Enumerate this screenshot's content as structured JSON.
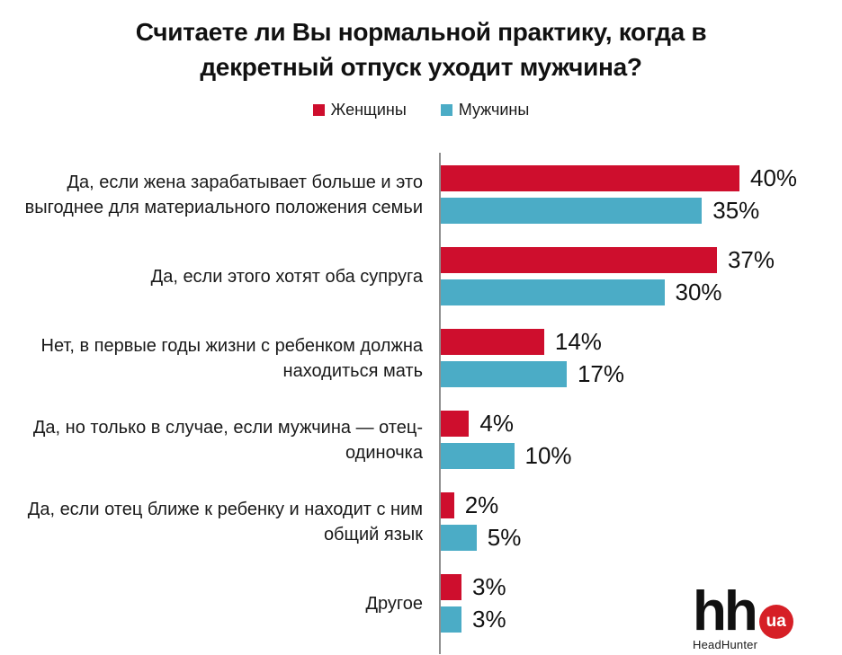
{
  "title": "Считаете ли Вы нормальной практику, когда в\nдекретный отпуск уходит мужчина?",
  "legend": [
    {
      "label": "Женщины",
      "color": "#ce0e2d"
    },
    {
      "label": "Мужчины",
      "color": "#4bacc6"
    }
  ],
  "chart_data": {
    "type": "bar",
    "orientation": "horizontal",
    "title": "Считаете ли Вы нормальной практику, когда в декретный отпуск уходит мужчина?",
    "categories": [
      "Да, если жена зарабатывает больше и это\nвыгоднее для материального положения семьи",
      "Да, если этого хотят оба супруга",
      "Нет, в первые годы жизни с ребенком должна\nнаходиться мать",
      "Да, но только в случае, если мужчина — отец-\nодиночка",
      "Да, если отец ближе к ребенку и находит с ним\nобщий язык",
      "Другое"
    ],
    "series": [
      {
        "name": "Женщины",
        "color": "#ce0e2d",
        "values": [
          40,
          37,
          14,
          4,
          2,
          3
        ]
      },
      {
        "name": "Мужчины",
        "color": "#4bacc6",
        "values": [
          35,
          30,
          17,
          10,
          5,
          3
        ]
      }
    ],
    "value_suffix": "%",
    "xlim": [
      0,
      48
    ],
    "grid": false,
    "legend_position": "top"
  },
  "logo": {
    "hh": "hh",
    "ua": "ua",
    "caption": "HeadHunter",
    "circle_color": "#d61f26"
  }
}
